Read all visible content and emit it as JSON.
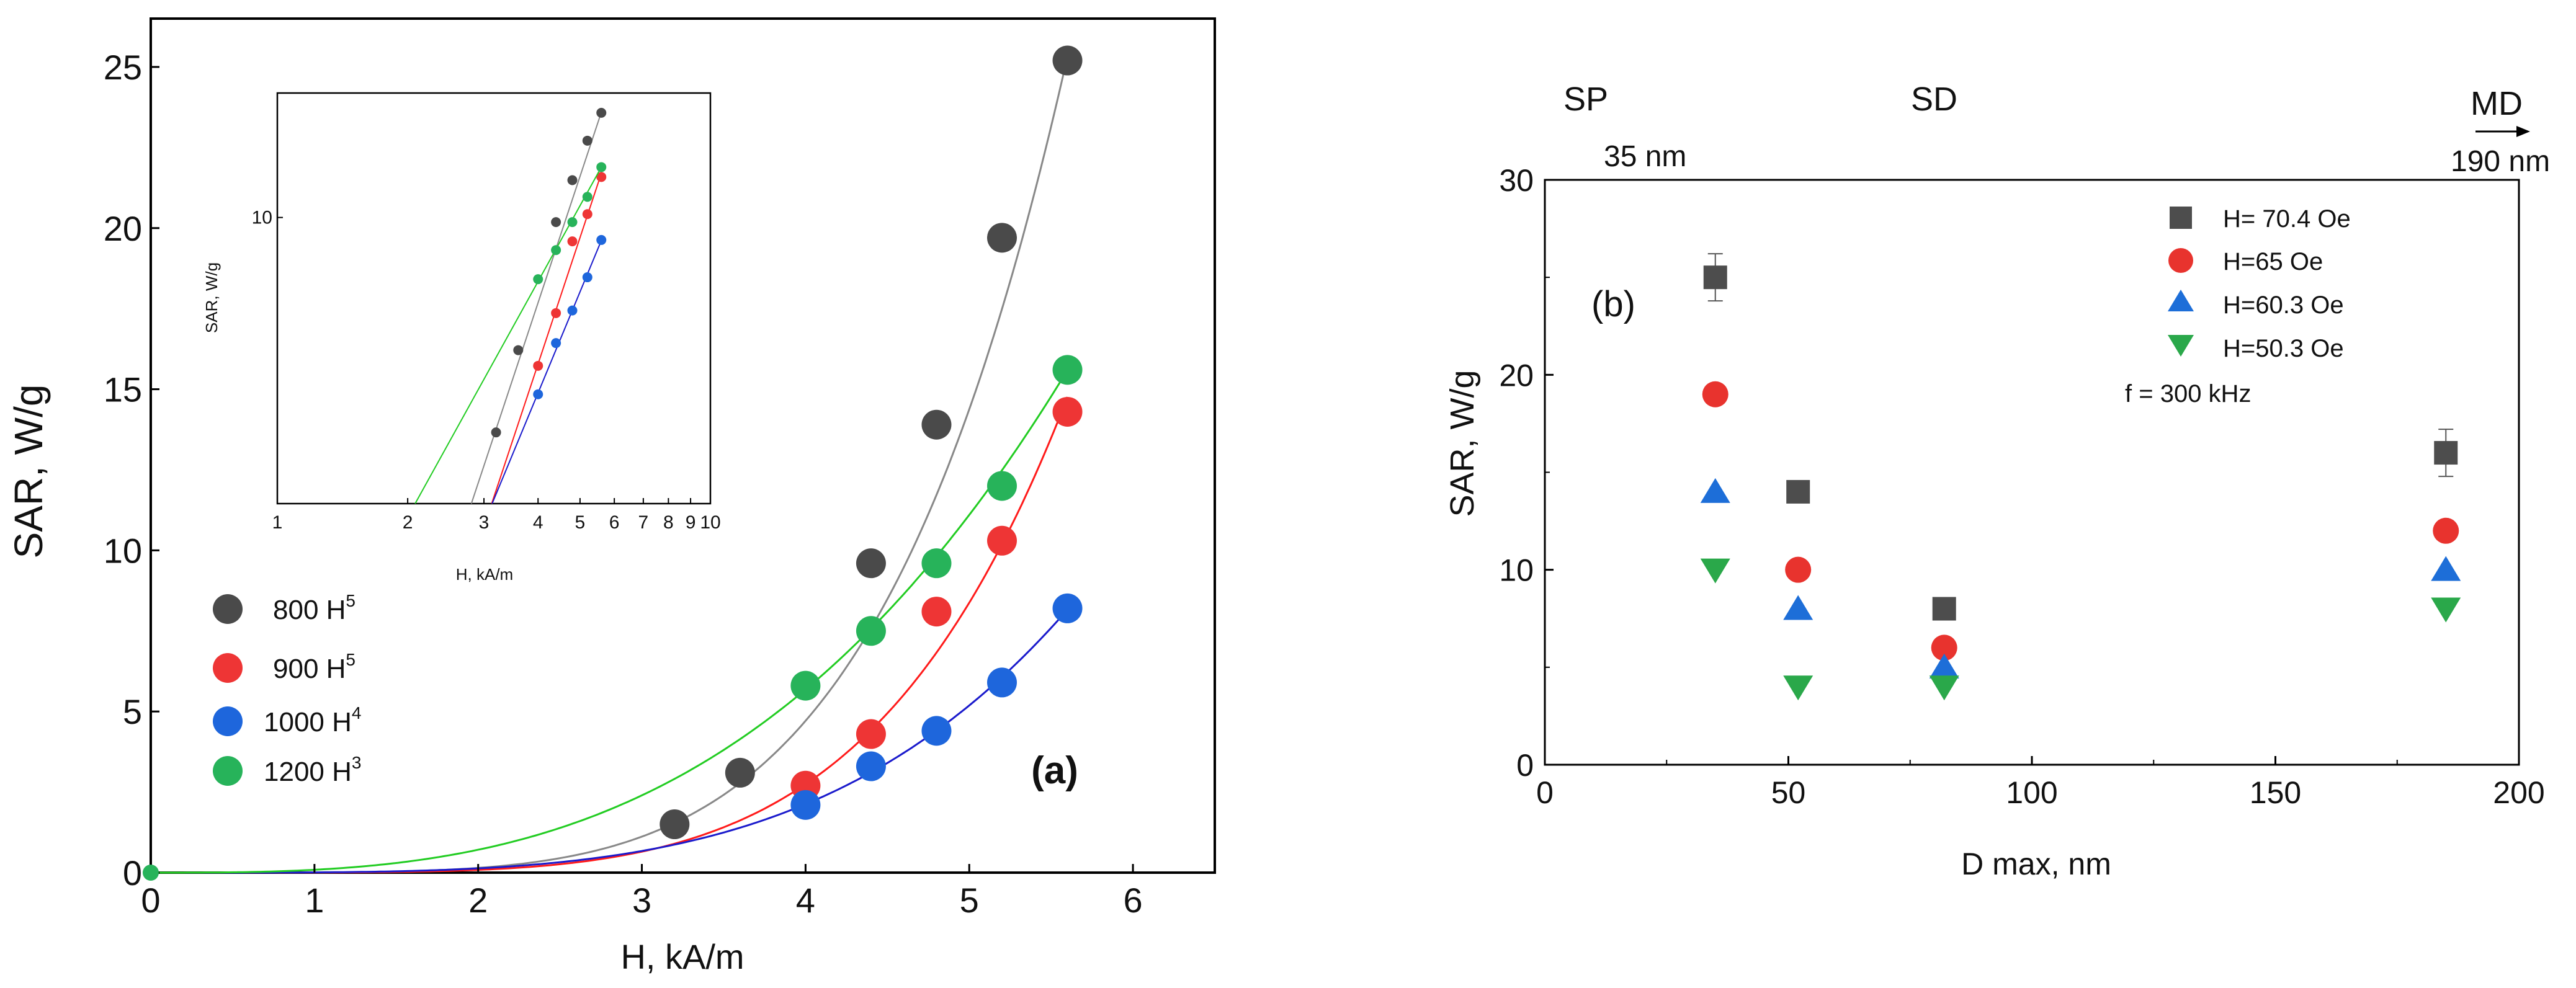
{
  "colors": {
    "s800": "#4a4a4a",
    "s900": "#ee3535",
    "s1000": "#1e66dc",
    "s1200": "#27b35a",
    "fit800": "#888888",
    "fit900": "#ff1a1a",
    "fit1000": "#1a1acc",
    "fit1200": "#22cc22",
    "b_square": "#4d4d4d",
    "b_circle": "#e8332e",
    "b_up": "#1d6ed8",
    "b_down": "#2aa84a"
  },
  "chart_data": [
    {
      "type": "scatter",
      "panel_label": "(a)",
      "xlabel": "H, kA/m",
      "ylabel": "SAR, W/g",
      "xlim": [
        0,
        6.5
      ],
      "ylim": [
        0,
        26.5
      ],
      "xticks": [
        "0",
        "1",
        "2",
        "3",
        "4",
        "5",
        "6"
      ],
      "yticks": [
        "0",
        "5",
        "10",
        "15",
        "20",
        "25"
      ],
      "legend": [
        {
          "label": "800 H",
          "sup": "5"
        },
        {
          "label": "900 H",
          "sup": "5"
        },
        {
          "label": "1000 H",
          "sup": "4"
        },
        {
          "label": "1200 H",
          "sup": "3"
        }
      ],
      "series": [
        {
          "name": "800",
          "exponent": 5,
          "coeff": 0.0046,
          "x": [
            3.2,
            3.6,
            4.4,
            4.8,
            5.2,
            5.6
          ],
          "y": [
            1.5,
            3.1,
            9.6,
            13.9,
            19.7,
            25.2
          ]
        },
        {
          "name": "900",
          "exponent": 5,
          "coeff": 0.00268,
          "x": [
            4.0,
            4.4,
            4.8,
            5.2,
            5.6
          ],
          "y": [
            2.7,
            4.3,
            8.1,
            10.3,
            14.3
          ]
        },
        {
          "name": "1000",
          "exponent": 4,
          "coeff": 0.0083,
          "x": [
            4.0,
            4.4,
            4.8,
            5.2,
            5.6
          ],
          "y": [
            2.1,
            3.3,
            4.4,
            5.9,
            8.2
          ]
        },
        {
          "name": "1200",
          "exponent": 3,
          "coeff": 0.0888,
          "x": [
            0,
            4.0,
            4.4,
            4.8,
            5.2,
            5.6
          ],
          "y": [
            0,
            5.8,
            7.5,
            9.6,
            12.0,
            15.6
          ]
        }
      ],
      "inset": {
        "xlabel": "H, kA/m",
        "ylabel": "SAR, W/g",
        "xscale": "log",
        "yscale": "log",
        "xlim": [
          1,
          10
        ],
        "ylim": [
          0.8,
          30
        ],
        "xtick_labels": [
          {
            "v": 1,
            "t": "1"
          },
          {
            "v": 2,
            "t": "2"
          },
          {
            "v": 3,
            "t": "3"
          },
          {
            "v": 4,
            "t": "4"
          },
          {
            "v": 5,
            "t": "5"
          },
          {
            "v": 6,
            "t": "6"
          },
          {
            "v": 7,
            "t": "7"
          },
          {
            "v": 8,
            "t": "8"
          },
          {
            "v": 9,
            "t": "9"
          },
          {
            "v": 10,
            "t": "10"
          }
        ],
        "ytick_labels": [
          {
            "v": 10,
            "t": "10"
          }
        ]
      }
    },
    {
      "type": "scatter",
      "panel_label": "(b)",
      "xlabel": "D max, nm",
      "ylabel": "SAR, W/g",
      "xlim": [
        0,
        200
      ],
      "ylim": [
        0,
        30
      ],
      "xticks": [
        "0",
        "50",
        "100",
        "150",
        "200"
      ],
      "yticks": [
        "0",
        "10",
        "20",
        "30"
      ],
      "frequency_note": "f = 300 kHz",
      "regions": [
        {
          "label": "SP",
          "sublabel": "35 nm"
        },
        {
          "label": "SD",
          "sublabel": ""
        },
        {
          "label": "MD",
          "sublabel": "190 nm"
        }
      ],
      "x": [
        35,
        52,
        82,
        185
      ],
      "series": [
        {
          "name": "H= 70.4 Oe",
          "marker": "square",
          "values": [
            25.0,
            14.0,
            8.0,
            16.0
          ]
        },
        {
          "name": "H=65 Oe",
          "marker": "circle",
          "values": [
            19.0,
            10.0,
            6.0,
            12.0
          ]
        },
        {
          "name": "H=60.3 Oe",
          "marker": "triangle-up",
          "values": [
            14.0,
            8.0,
            5.0,
            10.0
          ]
        },
        {
          "name": "H=50.3 Oe",
          "marker": "triangle-down",
          "values": [
            10.0,
            4.0,
            4.0,
            8.0
          ]
        }
      ]
    }
  ]
}
